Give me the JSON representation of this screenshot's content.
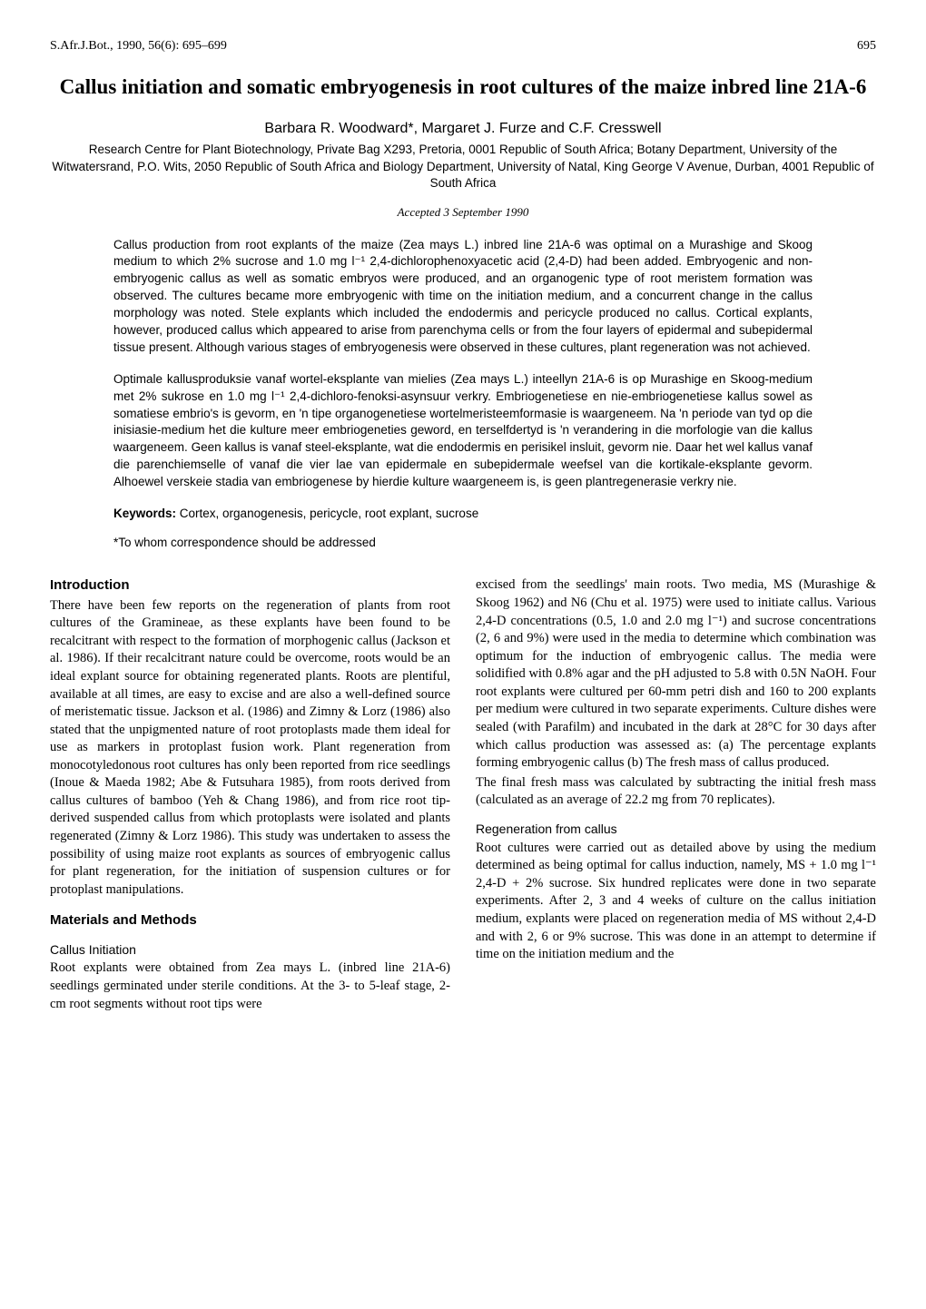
{
  "header": {
    "journal": "S.Afr.J.Bot., 1990, 56(6): 695–699",
    "page": "695"
  },
  "title": "Callus initiation and somatic embryogenesis in root cultures of the maize inbred line 21A-6",
  "authors": "Barbara R. Woodward*, Margaret J. Furze and C.F. Cresswell",
  "affiliations": "Research Centre for Plant Biotechnology, Private Bag X293, Pretoria, 0001 Republic of South Africa; Botany Department, University of the Witwatersrand, P.O. Wits, 2050 Republic of South Africa and Biology Department, University of Natal, King George V Avenue, Durban, 4001 Republic of South Africa",
  "accepted": "Accepted 3 September 1990",
  "abstract_en": "Callus production from root explants of the maize (Zea mays L.) inbred line 21A-6 was optimal on a Murashige and Skoog medium to which 2% sucrose and 1.0 mg l⁻¹ 2,4-dichlorophenoxyacetic acid (2,4-D) had been added. Embryogenic and non-embryogenic callus as well as somatic embryos were produced, and an organogenic type of root meristem formation was observed. The cultures became more embryogenic with time on the initiation medium, and a concurrent change in the callus morphology was noted. Stele explants which included the endodermis and pericycle produced no callus. Cortical explants, however, produced callus which appeared to arise from parenchyma cells or from the four layers of epidermal and subepidermal tissue present. Although various stages of embryogenesis were observed in these cultures, plant regeneration was not achieved.",
  "abstract_af": "Optimale kallusproduksie vanaf wortel-eksplante van mielies (Zea mays L.) inteellyn 21A-6 is op Murashige en Skoog-medium met 2% sukrose en 1.0 mg l⁻¹ 2,4-dichloro-fenoksi-asynsuur verkry. Embriogenetiese en nie-embriogenetiese kallus sowel as somatiese embrio's is gevorm, en 'n tipe organogenetiese wortelmeristeemformasie is waargeneem. Na 'n periode van tyd op die inisiasie-medium het die kulture meer embriogeneties geword, en terselfdertyd is 'n verandering in die morfologie van die kallus waargeneem. Geen kallus is vanaf steel-eksplante, wat die endodermis en perisikel insluit, gevorm nie. Daar het wel kallus vanaf die parenchiemselle of vanaf die vier lae van epidermale en subepidermale weefsel van die kortikale-eksplante gevorm. Alhoewel verskeie stadia van embriogenese by hierdie kulture waargeneem is, is geen plantregenerasie verkry nie.",
  "keywords_label": "Keywords:",
  "keywords": " Cortex, organogenesis, pericycle, root explant, sucrose",
  "correspondence": "*To whom correspondence should be addressed",
  "sections": {
    "intro_heading": "Introduction",
    "intro_text": "There have been few reports on the regeneration of plants from root cultures of the Gramineae, as these explants have been found to be recalcitrant with respect to the formation of morphogenic callus (Jackson et al. 1986). If their recalcitrant nature could be overcome, roots would be an ideal explant source for obtaining regenerated plants. Roots are plentiful, available at all times, are easy to excise and are also a well-defined source of meristematic tissue. Jackson et al. (1986) and Zimny & Lorz (1986) also stated that the unpigmented nature of root protoplasts made them ideal for use as markers in protoplast fusion work. Plant regeneration from monocotyledonous root cultures has only been reported from rice seedlings (Inoue & Maeda 1982; Abe & Futsuhara 1985), from roots derived from callus cultures of bamboo (Yeh & Chang 1986), and from rice root tip-derived suspended callus from which protoplasts were isolated and plants regenerated (Zimny & Lorz 1986). This study was undertaken to assess the possibility of using maize root explants as sources of embryogenic callus for plant regeneration, for the initiation of suspension cultures or for protoplast manipulations.",
    "mm_heading": "Materials and Methods",
    "callus_init_heading": "Callus Initiation",
    "callus_init_text": "Root explants were obtained from Zea mays L. (inbred line 21A-6) seedlings germinated under sterile conditions. At the 3- to 5-leaf stage, 2-cm root segments without root tips were",
    "col2_p1": "excised from the seedlings' main roots. Two media, MS (Murashige & Skoog 1962) and N6 (Chu et al. 1975) were used to initiate callus. Various 2,4-D concentrations (0.5, 1.0 and 2.0 mg l⁻¹) and sucrose concentrations (2, 6 and 9%) were used in the media to determine which combination was optimum for the induction of embryogenic callus. The media were solidified with 0.8% agar and the pH adjusted to 5.8 with 0.5N NaOH. Four root explants were cultured per 60-mm petri dish and 160 to 200 explants per medium were cultured in two separate experiments. Culture dishes were sealed (with Parafilm) and incubated in the dark at 28°C for 30 days after which callus production was assessed as: (a) The percentage explants forming embryogenic callus (b) The fresh mass of callus produced.",
    "col2_p2": "The final fresh mass was calculated by subtracting the initial fresh mass (calculated as an average of 22.2 mg from 70 replicates).",
    "regen_heading": "Regeneration from callus",
    "regen_text": "Root cultures were carried out as detailed above by using the medium determined as being optimal for callus induction, namely, MS + 1.0 mg l⁻¹ 2,4-D + 2% sucrose. Six hundred replicates were done in two separate experiments. After 2, 3 and 4 weeks of culture on the callus initiation medium, explants were placed on regeneration media of MS without 2,4-D and with 2, 6 or 9% sucrose. This was done in an attempt to determine if time on the initiation medium and the"
  },
  "colors": {
    "text": "#000000",
    "background": "#ffffff"
  },
  "fonts": {
    "body": "Georgia, 'Times New Roman', serif",
    "sans": "Arial, Helvetica, sans-serif"
  }
}
